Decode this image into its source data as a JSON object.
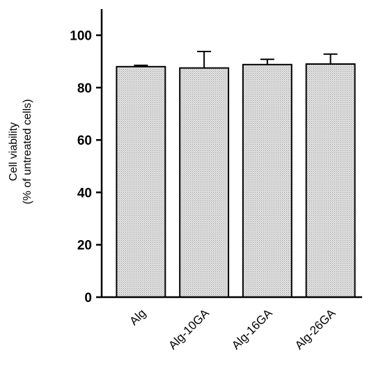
{
  "chart_data": {
    "type": "bar",
    "categories": [
      "Alg",
      "Alg-10GA",
      "Alg-16GA",
      "Alg-26GA"
    ],
    "values": [
      88.0,
      87.5,
      88.8,
      89.0
    ],
    "error_upper": [
      0.5,
      6.3,
      2.0,
      3.8
    ],
    "ylabel_line1": "Cell viability",
    "ylabel_line2": "(% of untreated cells)",
    "ylim": [
      0,
      110
    ],
    "yticks": [
      0,
      20,
      40,
      60,
      80,
      100
    ],
    "grid": false,
    "bar_fill": "#d6d6d6",
    "bar_stroke": "#000000"
  }
}
